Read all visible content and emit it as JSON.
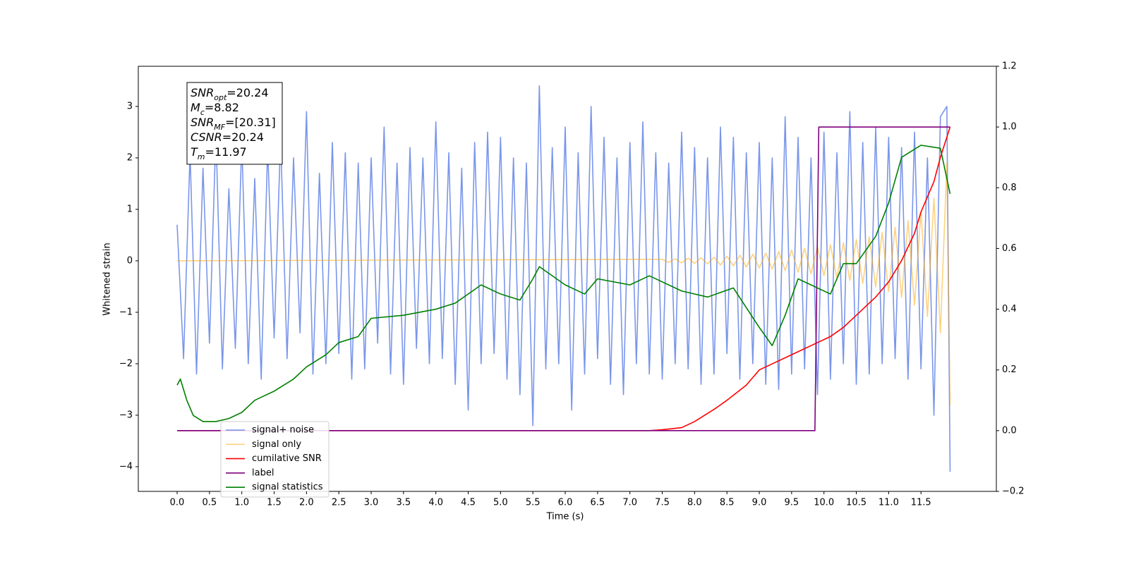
{
  "chart_data": {
    "type": "line",
    "xlabel": "Time (s)",
    "ylabel": "Whitened strain",
    "xlim": [
      -0.6,
      12.665
    ],
    "ylim": [
      -4.48,
      3.78
    ],
    "y2lim": [
      -0.2,
      1.2
    ],
    "xticks": [
      {
        "value": 0,
        "label": "0.0"
      },
      0.5,
      {
        "value": 1,
        "label": "1.0"
      },
      1.5,
      {
        "value": 2,
        "label": "2.0"
      },
      2.5,
      {
        "value": 3,
        "label": "3.0"
      },
      3.5,
      {
        "value": 4,
        "label": "4.0"
      },
      4.5,
      {
        "value": 5,
        "label": "5.0"
      },
      5.5,
      {
        "value": 6,
        "label": "6.0"
      },
      6.5,
      {
        "value": 7,
        "label": "7.0"
      },
      7.5,
      {
        "value": 8,
        "label": "8.0"
      },
      8.5,
      {
        "value": 9,
        "label": "9.0"
      },
      9.5,
      {
        "value": 10,
        "label": "10.0"
      },
      10.5,
      {
        "value": 11,
        "label": "11.0"
      },
      11.5
    ],
    "yticks": [
      {
        "value": -4,
        "label": "−4"
      },
      {
        "value": -3,
        "label": "−3"
      },
      {
        "value": -2,
        "label": "−2"
      },
      {
        "value": -1,
        "label": "−1"
      },
      0,
      1,
      2,
      3
    ],
    "y2ticks": [
      {
        "value": -0.2,
        "label": "−0.2"
      },
      {
        "value": 0,
        "label": "0.0"
      },
      0.2,
      0.4,
      0.6,
      0.8,
      {
        "value": 1,
        "label": "1.0"
      },
      1.2
    ],
    "annotations": [
      {
        "main": "SNR",
        "sub": "opt",
        "text": "=20.24"
      },
      {
        "main": "M",
        "sub": "c",
        "text": "=8.82"
      },
      {
        "main": "SNR",
        "sub": "MF",
        "text": "=[20.31]"
      },
      {
        "main": "CSNR",
        "text": "=20.24"
      },
      {
        "main": "T",
        "sub": "m",
        "text": "=11.97"
      }
    ],
    "series": [
      {
        "name": "signal+ noise",
        "color": "#4169e1",
        "alpha": 0.7,
        "axis": "y",
        "x": [
          0.0,
          0.1,
          0.2,
          0.3,
          0.4,
          0.5,
          0.6,
          0.7,
          0.8,
          0.9,
          1.0,
          1.1,
          1.2,
          1.3,
          1.4,
          1.5,
          1.6,
          1.7,
          1.8,
          1.9,
          2.0,
          2.1,
          2.2,
          2.3,
          2.4,
          2.5,
          2.6,
          2.7,
          2.8,
          2.9,
          3.0,
          3.1,
          3.2,
          3.3,
          3.4,
          3.5,
          3.6,
          3.7,
          3.8,
          3.9,
          4.0,
          4.1,
          4.2,
          4.3,
          4.4,
          4.5,
          4.6,
          4.7,
          4.8,
          4.9,
          5.0,
          5.1,
          5.2,
          5.3,
          5.4,
          5.5,
          5.6,
          5.7,
          5.8,
          5.9,
          6.0,
          6.1,
          6.2,
          6.3,
          6.4,
          6.5,
          6.6,
          6.7,
          6.8,
          6.9,
          7.0,
          7.1,
          7.2,
          7.3,
          7.4,
          7.5,
          7.6,
          7.7,
          7.8,
          7.9,
          8.0,
          8.1,
          8.2,
          8.3,
          8.4,
          8.5,
          8.6,
          8.7,
          8.8,
          8.9,
          9.0,
          9.1,
          9.2,
          9.3,
          9.4,
          9.5,
          9.6,
          9.7,
          9.8,
          9.9,
          10.0,
          10.1,
          10.2,
          10.3,
          10.4,
          10.5,
          10.6,
          10.7,
          10.8,
          10.9,
          11.0,
          11.1,
          11.2,
          11.3,
          11.4,
          11.5,
          11.6,
          11.7,
          11.8,
          11.9,
          11.95
        ],
        "values": [
          0.7,
          -1.9,
          2.1,
          -2.2,
          1.8,
          -1.6,
          2.5,
          -2.1,
          1.4,
          -1.7,
          2.3,
          -2.0,
          1.6,
          -2.3,
          2.2,
          -1.5,
          2.4,
          -1.9,
          2.0,
          -1.4,
          2.9,
          -2.2,
          1.7,
          -2.0,
          2.3,
          -1.8,
          2.1,
          -2.3,
          1.9,
          -2.1,
          2.0,
          -1.6,
          2.6,
          -2.2,
          1.9,
          -2.4,
          2.2,
          -1.7,
          2.0,
          -2.0,
          2.7,
          -1.9,
          2.1,
          -2.4,
          1.8,
          -2.9,
          2.3,
          -2.0,
          2.5,
          -1.8,
          2.4,
          -2.3,
          2.0,
          -2.6,
          1.9,
          -3.2,
          3.4,
          -2.1,
          2.2,
          -2.0,
          2.6,
          -2.9,
          2.1,
          -2.2,
          3.0,
          -1.9,
          2.4,
          -2.4,
          2.0,
          -2.6,
          2.3,
          -2.0,
          2.7,
          -2.2,
          2.1,
          -2.3,
          1.9,
          -2.0,
          2.5,
          -2.1,
          2.2,
          -2.4,
          2.0,
          -2.2,
          2.6,
          -1.8,
          2.4,
          -2.3,
          2.1,
          -2.0,
          2.3,
          -2.4,
          2.0,
          -2.5,
          2.8,
          -2.2,
          2.4,
          -2.1,
          2.0,
          -2.6,
          2.5,
          -2.3,
          2.1,
          -2.0,
          2.9,
          -2.4,
          2.3,
          -2.2,
          2.6,
          -2.0,
          2.4,
          -1.9,
          2.2,
          -2.3,
          2.5,
          -2.1,
          2.0,
          -3.0,
          2.8,
          3.0,
          -4.1
        ]
      },
      {
        "name": "signal only",
        "color": "#ffa500",
        "alpha": 0.5,
        "axis": "y",
        "x": [
          0,
          7.5,
          7.6,
          7.7,
          7.8,
          7.9,
          8.0,
          8.1,
          8.2,
          8.3,
          8.4,
          8.5,
          8.6,
          8.7,
          8.8,
          8.9,
          9.0,
          9.1,
          9.2,
          9.3,
          9.4,
          9.5,
          9.6,
          9.7,
          9.8,
          9.9,
          10.0,
          10.1,
          10.2,
          10.3,
          10.4,
          10.5,
          10.6,
          10.7,
          10.8,
          10.9,
          11.0,
          11.1,
          11.2,
          11.3,
          11.4,
          11.5,
          11.6,
          11.7,
          11.8,
          11.9,
          11.95
        ],
        "values": [
          0,
          0.03,
          -0.03,
          0.04,
          -0.04,
          0.05,
          -0.05,
          0.06,
          -0.06,
          0.07,
          -0.08,
          0.09,
          -0.1,
          0.11,
          -0.12,
          0.13,
          -0.14,
          0.15,
          -0.16,
          0.18,
          -0.19,
          0.21,
          -0.22,
          0.24,
          -0.25,
          0.27,
          -0.29,
          0.31,
          -0.33,
          0.35,
          -0.38,
          0.41,
          -0.44,
          0.47,
          -0.51,
          0.55,
          -0.6,
          0.65,
          -0.71,
          0.78,
          -0.86,
          0.96,
          -1.08,
          1.22,
          -1.4,
          1.9,
          -2.8
        ]
      },
      {
        "name": "cumilative SNR",
        "color": "#ff0000",
        "alpha": 1,
        "axis": "y2",
        "x": [
          0,
          7.3,
          7.5,
          7.8,
          8.0,
          8.3,
          8.5,
          8.8,
          9.0,
          9.3,
          9.6,
          9.9,
          10.1,
          10.3,
          10.5,
          10.8,
          11.0,
          11.2,
          11.4,
          11.5,
          11.7,
          11.8,
          11.95
        ],
        "values": [
          0,
          0,
          0.003,
          0.01,
          0.03,
          0.07,
          0.1,
          0.15,
          0.2,
          0.23,
          0.26,
          0.29,
          0.31,
          0.34,
          0.38,
          0.44,
          0.49,
          0.56,
          0.65,
          0.72,
          0.82,
          0.9,
          1.0
        ]
      },
      {
        "name": "label",
        "color": "#800080",
        "alpha": 1,
        "axis": "y2",
        "x": [
          0,
          9.86,
          9.92,
          11.95
        ],
        "values": [
          0,
          0,
          1,
          1
        ]
      },
      {
        "name": "signal statistics",
        "color": "#008000",
        "alpha": 1,
        "axis": "y2",
        "x": [
          0,
          0.05,
          0.15,
          0.25,
          0.4,
          0.6,
          0.8,
          1.0,
          1.2,
          1.5,
          1.8,
          2.0,
          2.3,
          2.5,
          2.8,
          3.0,
          3.5,
          4.0,
          4.3,
          4.7,
          5.0,
          5.3,
          5.5,
          5.6,
          6.0,
          6.3,
          6.5,
          7.0,
          7.3,
          7.8,
          8.2,
          8.6,
          9.0,
          9.2,
          9.4,
          9.6,
          9.8,
          10.1,
          10.3,
          10.5,
          10.8,
          11.0,
          11.2,
          11.5,
          11.8,
          11.95
        ],
        "values": [
          0.15,
          0.17,
          0.1,
          0.05,
          0.03,
          0.03,
          0.04,
          0.06,
          0.1,
          0.13,
          0.17,
          0.21,
          0.25,
          0.29,
          0.31,
          0.37,
          0.38,
          0.4,
          0.42,
          0.48,
          0.45,
          0.43,
          0.5,
          0.54,
          0.48,
          0.45,
          0.5,
          0.48,
          0.51,
          0.46,
          0.44,
          0.47,
          0.34,
          0.28,
          0.38,
          0.5,
          0.48,
          0.45,
          0.55,
          0.55,
          0.64,
          0.75,
          0.9,
          0.94,
          0.93,
          0.78
        ]
      }
    ]
  }
}
